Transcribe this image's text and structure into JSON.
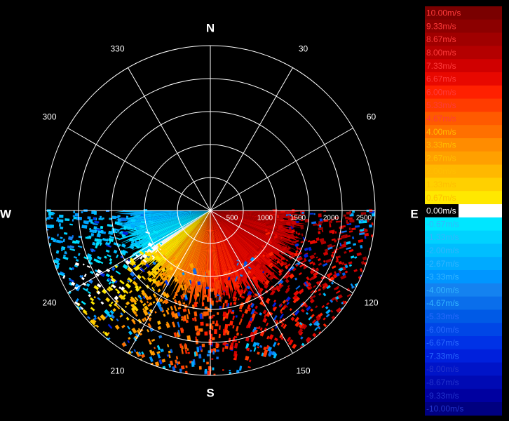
{
  "chart_data": {
    "type": "polar-heatmap",
    "title": "",
    "center_label": "",
    "compass": {
      "north": "N",
      "south": "S",
      "east": "E",
      "west": "W"
    },
    "angle_labels": [
      "30",
      "60",
      "120",
      "150",
      "210",
      "240",
      "300",
      "330"
    ],
    "angle_values_deg": [
      30,
      60,
      120,
      150,
      210,
      240,
      300,
      330
    ],
    "radial_labels": [
      "500",
      "1000",
      "1500",
      "2000",
      "2500"
    ],
    "radial_values": [
      500,
      1000,
      1500,
      2000,
      2500
    ],
    "radial_max": 2500,
    "spoke_step_deg": 30,
    "scan_sector_deg": [
      90,
      270
    ],
    "sector_gradient": [
      {
        "azimuth_deg": 95,
        "velocity_ms": 8.0
      },
      {
        "azimuth_deg": 120,
        "velocity_ms": 7.33
      },
      {
        "azimuth_deg": 150,
        "velocity_ms": 6.67
      },
      {
        "azimuth_deg": 170,
        "velocity_ms": 6.0
      },
      {
        "azimuth_deg": 190,
        "velocity_ms": 4.67
      },
      {
        "azimuth_deg": 205,
        "velocity_ms": 3.33
      },
      {
        "azimuth_deg": 215,
        "velocity_ms": 2.67
      },
      {
        "azimuth_deg": 225,
        "velocity_ms": 1.33
      },
      {
        "azimuth_deg": 232,
        "velocity_ms": 0.67
      },
      {
        "azimuth_deg": 240,
        "velocity_ms": -0.67
      },
      {
        "azimuth_deg": 250,
        "velocity_ms": -1.33
      },
      {
        "azimuth_deg": 262,
        "velocity_ms": -2.0
      },
      {
        "azimuth_deg": 270,
        "velocity_ms": -2.67
      }
    ],
    "colorbar": [
      {
        "label": "10.00m/s",
        "value": 10.0,
        "color": "#7a0000"
      },
      {
        "label": "9.33m/s",
        "value": 9.33,
        "color": "#8c0000"
      },
      {
        "label": "8.67m/s",
        "value": 8.67,
        "color": "#a00000"
      },
      {
        "label": "8.00m/s",
        "value": 8.0,
        "color": "#b40000"
      },
      {
        "label": "7.33m/s",
        "value": 7.33,
        "color": "#d00000"
      },
      {
        "label": "6.67m/s",
        "value": 6.67,
        "color": "#e80800"
      },
      {
        "label": "6.00m/s",
        "value": 6.0,
        "color": "#ff2000"
      },
      {
        "label": "5.33m/s",
        "value": 5.33,
        "color": "#ff3c00"
      },
      {
        "label": "4.67m/s",
        "value": 4.67,
        "color": "#ff5a00"
      },
      {
        "label": "4.00m/s",
        "value": 4.0,
        "color": "#ff7000"
      },
      {
        "label": "3.33m/s",
        "value": 3.33,
        "color": "#ff8c00"
      },
      {
        "label": "2.67m/s",
        "value": 2.67,
        "color": "#ffa000"
      },
      {
        "label": "2.00m/s",
        "value": 2.0,
        "color": "#ffb800"
      },
      {
        "label": "1.33m/s",
        "value": 1.33,
        "color": "#ffd000"
      },
      {
        "label": "0.67m/s",
        "value": 0.67,
        "color": "#ffe800"
      },
      {
        "label": "0.00m/s",
        "value": 0.0,
        "color": "#ffffff"
      },
      {
        "label": "-0.67m/s",
        "value": -0.67,
        "color": "#00e6ff"
      },
      {
        "label": "-1.33m/s",
        "value": -1.33,
        "color": "#00d2ff"
      },
      {
        "label": "-2.00m/s",
        "value": -2.0,
        "color": "#00beff"
      },
      {
        "label": "-2.67m/s",
        "value": -2.67,
        "color": "#00aaff"
      },
      {
        "label": "-3.33m/s",
        "value": -3.33,
        "color": "#0096ff"
      },
      {
        "label": "-4.00m/s",
        "value": -4.0,
        "color": "#1482f0"
      },
      {
        "label": "-4.67m/s",
        "value": -4.67,
        "color": "#0a6eeb"
      },
      {
        "label": "-5.33m/s",
        "value": -5.33,
        "color": "#005ae6"
      },
      {
        "label": "-6.00m/s",
        "value": -6.0,
        "color": "#0046e6"
      },
      {
        "label": "-6.67m/s",
        "value": -6.67,
        "color": "#0032e6"
      },
      {
        "label": "-7.33m/s",
        "value": -7.33,
        "color": "#0020dc"
      },
      {
        "label": "-8.00m/s",
        "value": -8.0,
        "color": "#0014c8"
      },
      {
        "label": "-8.67m/s",
        "value": -8.67,
        "color": "#000ab4"
      },
      {
        "label": "-9.33m/s",
        "value": -9.33,
        "color": "#0000a0"
      },
      {
        "label": "-10.00m/s",
        "value": -10.0,
        "color": "#000080"
      }
    ],
    "grid": true,
    "legend": "right"
  }
}
